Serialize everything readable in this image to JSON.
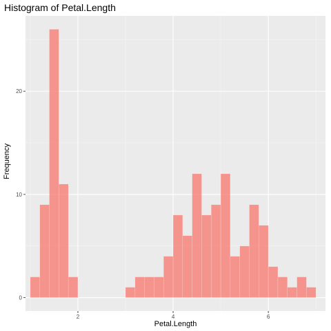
{
  "chart_data": {
    "type": "bar",
    "title": "Histogram of Petal.Length",
    "xlabel": "Petal.Length",
    "ylabel": "Frequency",
    "bin_width": 0.2,
    "bins": [
      {
        "x0": 1.0,
        "x1": 1.2,
        "count": 2
      },
      {
        "x0": 1.2,
        "x1": 1.4,
        "count": 9
      },
      {
        "x0": 1.4,
        "x1": 1.6,
        "count": 26
      },
      {
        "x0": 1.6,
        "x1": 1.8,
        "count": 11
      },
      {
        "x0": 1.8,
        "x1": 2.0,
        "count": 2
      },
      {
        "x0": 2.0,
        "x1": 2.2,
        "count": 0
      },
      {
        "x0": 2.2,
        "x1": 2.4,
        "count": 0
      },
      {
        "x0": 2.4,
        "x1": 2.6,
        "count": 0
      },
      {
        "x0": 2.6,
        "x1": 2.8,
        "count": 0
      },
      {
        "x0": 2.8,
        "x1": 3.0,
        "count": 0
      },
      {
        "x0": 3.0,
        "x1": 3.2,
        "count": 1
      },
      {
        "x0": 3.2,
        "x1": 3.4,
        "count": 2
      },
      {
        "x0": 3.4,
        "x1": 3.6,
        "count": 2
      },
      {
        "x0": 3.6,
        "x1": 3.8,
        "count": 2
      },
      {
        "x0": 3.8,
        "x1": 4.0,
        "count": 4
      },
      {
        "x0": 4.0,
        "x1": 4.2,
        "count": 8
      },
      {
        "x0": 4.2,
        "x1": 4.4,
        "count": 6
      },
      {
        "x0": 4.4,
        "x1": 4.6,
        "count": 12
      },
      {
        "x0": 4.6,
        "x1": 4.8,
        "count": 8
      },
      {
        "x0": 4.8,
        "x1": 5.0,
        "count": 9
      },
      {
        "x0": 5.0,
        "x1": 5.2,
        "count": 12
      },
      {
        "x0": 5.2,
        "x1": 5.4,
        "count": 4
      },
      {
        "x0": 5.4,
        "x1": 5.6,
        "count": 5
      },
      {
        "x0": 5.6,
        "x1": 5.8,
        "count": 9
      },
      {
        "x0": 5.8,
        "x1": 6.0,
        "count": 7
      },
      {
        "x0": 6.0,
        "x1": 6.2,
        "count": 3
      },
      {
        "x0": 6.2,
        "x1": 6.4,
        "count": 2
      },
      {
        "x0": 6.4,
        "x1": 6.6,
        "count": 1
      },
      {
        "x0": 6.6,
        "x1": 6.8,
        "count": 2
      },
      {
        "x0": 6.8,
        "x1": 7.0,
        "count": 1
      }
    ],
    "xlim": [
      0.9,
      7.2
    ],
    "ylim": [
      -1.3,
      27.3
    ],
    "x_ticks": [
      2,
      4,
      6
    ],
    "y_ticks": [
      0,
      10,
      20
    ],
    "grid": true,
    "colors": {
      "panel_background": "#ebebeb",
      "grid_major": "#ffffff",
      "grid_minor": "#f5f5f5",
      "bar_fill": "#f8766d",
      "bar_opacity": 0.75,
      "tick_color": "#4d4d4d"
    }
  }
}
